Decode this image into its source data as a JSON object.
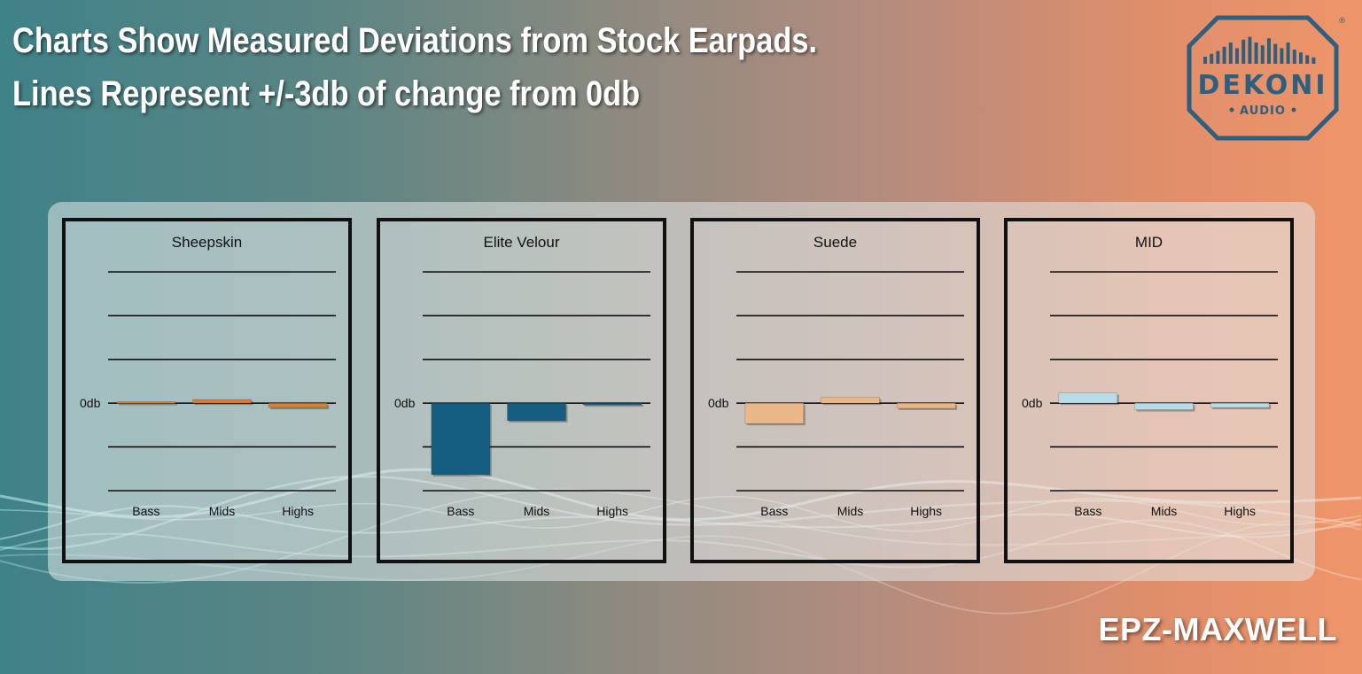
{
  "headline": {
    "line1": "Charts Show Measured Deviations from Stock Earpads.",
    "line2": "Lines Represent +/-3db of change from 0db"
  },
  "logo": {
    "brand": "DEKONI",
    "sub": "AUDIO",
    "registered": "®"
  },
  "product_name": "EPZ-MAXWELL",
  "colors": {
    "logo": "#2f5f7e",
    "frame": "#111111"
  },
  "chart_data": [
    {
      "type": "bar",
      "title": "Sheepskin",
      "categories": [
        "Bass",
        "Mids",
        "Highs"
      ],
      "values": [
        0.1,
        0.25,
        -0.3
      ],
      "zero_label": "0db",
      "ylim": [
        -6,
        9
      ],
      "gridlines": [
        9,
        6,
        3,
        0,
        -3,
        -6
      ],
      "color": "#e07a33"
    },
    {
      "type": "bar",
      "title": "Elite Velour",
      "categories": [
        "Bass",
        "Mids",
        "Highs"
      ],
      "values": [
        -4.9,
        -1.2,
        0
      ],
      "zero_label": "0db",
      "ylim": [
        -6,
        9
      ],
      "gridlines": [
        9,
        6,
        3,
        0,
        -3,
        -6
      ],
      "color": "#165d82"
    },
    {
      "type": "bar",
      "title": "Suede",
      "categories": [
        "Bass",
        "Mids",
        "Highs"
      ],
      "values": [
        -1.4,
        0.4,
        -0.35
      ],
      "zero_label": "0db",
      "ylim": [
        -6,
        9
      ],
      "gridlines": [
        9,
        6,
        3,
        0,
        -3,
        -6
      ],
      "color": "#e9b886"
    },
    {
      "type": "bar",
      "title": "MID",
      "categories": [
        "Bass",
        "Mids",
        "Highs"
      ],
      "values": [
        0.7,
        -0.45,
        -0.3
      ],
      "zero_label": "0db",
      "ylim": [
        -6,
        9
      ],
      "gridlines": [
        9,
        6,
        3,
        0,
        -3,
        -6
      ],
      "color": "#b8dbe8"
    }
  ]
}
